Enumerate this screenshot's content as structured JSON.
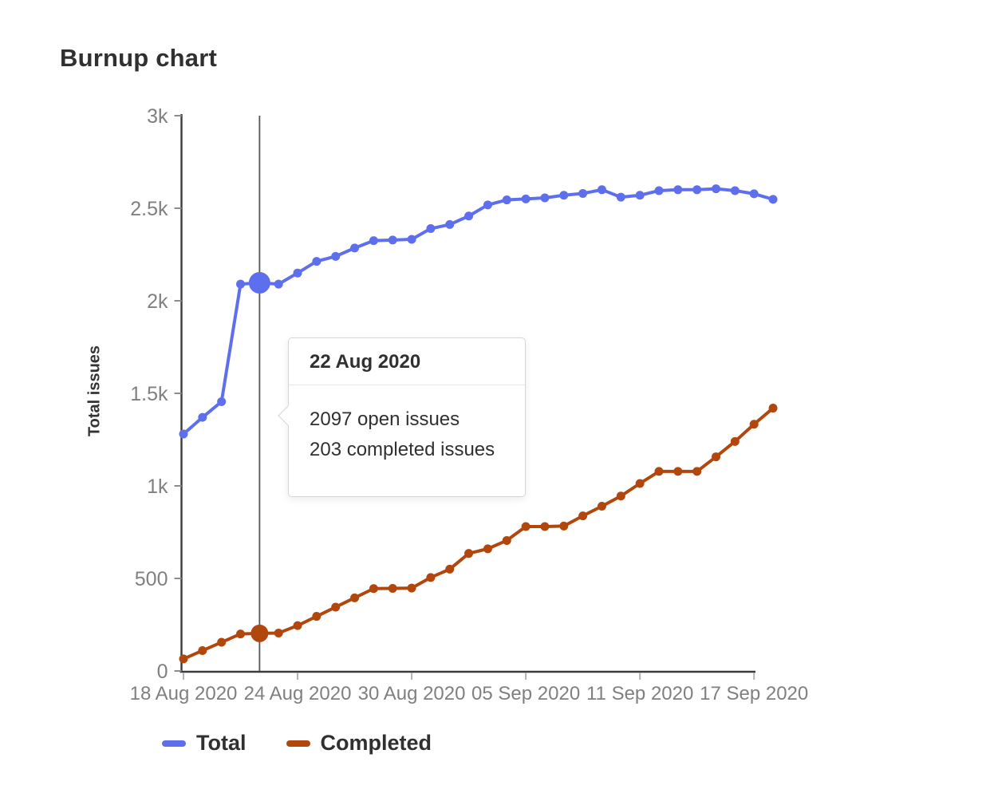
{
  "page": {
    "title": "Burnup chart"
  },
  "chart_data": {
    "type": "line",
    "title": "Burnup chart",
    "xlabel": "",
    "ylabel": "Total issues",
    "ylim": [
      0,
      3000
    ],
    "grid": false,
    "legend_position": "bottom",
    "yticks": [
      {
        "value": 0,
        "label": "0"
      },
      {
        "value": 500,
        "label": "500"
      },
      {
        "value": 1000,
        "label": "1k"
      },
      {
        "value": 1500,
        "label": "1.5k"
      },
      {
        "value": 2000,
        "label": "2k"
      },
      {
        "value": 2500,
        "label": "2.5k"
      },
      {
        "value": 3000,
        "label": "3k"
      }
    ],
    "xticks": [
      {
        "day_index": 0,
        "label": "18 Aug 2020"
      },
      {
        "day_index": 6,
        "label": "24 Aug 2020"
      },
      {
        "day_index": 12,
        "label": "30 Aug 2020"
      },
      {
        "day_index": 18,
        "label": "05 Sep 2020"
      },
      {
        "day_index": 24,
        "label": "11 Sep 2020"
      },
      {
        "day_index": 30,
        "label": "17 Sep 2020"
      }
    ],
    "x": [
      "18 Aug 2020",
      "19 Aug 2020",
      "20 Aug 2020",
      "21 Aug 2020",
      "22 Aug 2020",
      "23 Aug 2020",
      "24 Aug 2020",
      "25 Aug 2020",
      "26 Aug 2020",
      "27 Aug 2020",
      "28 Aug 2020",
      "29 Aug 2020",
      "30 Aug 2020",
      "31 Aug 2020",
      "01 Sep 2020",
      "02 Sep 2020",
      "03 Sep 2020",
      "04 Sep 2020",
      "05 Sep 2020",
      "06 Sep 2020",
      "07 Sep 2020",
      "08 Sep 2020",
      "09 Sep 2020",
      "10 Sep 2020",
      "11 Sep 2020",
      "12 Sep 2020",
      "13 Sep 2020",
      "14 Sep 2020",
      "15 Sep 2020",
      "16 Sep 2020",
      "17 Sep 2020",
      "18 Sep 2020"
    ],
    "series": [
      {
        "name": "Total",
        "color": "#5e6fed",
        "values": [
          1280,
          1370,
          1455,
          2090,
          2097,
          2090,
          2150,
          2213,
          2240,
          2285,
          2325,
          2328,
          2332,
          2390,
          2412,
          2458,
          2518,
          2545,
          2550,
          2556,
          2570,
          2580,
          2600,
          2560,
          2570,
          2595,
          2600,
          2600,
          2605,
          2595,
          2578,
          2548
        ]
      },
      {
        "name": "Completed",
        "color": "#b2470e",
        "values": [
          65,
          110,
          155,
          200,
          203,
          205,
          245,
          295,
          345,
          395,
          445,
          446,
          448,
          505,
          550,
          635,
          660,
          705,
          780,
          780,
          783,
          838,
          890,
          945,
          1013,
          1078,
          1078,
          1078,
          1157,
          1240,
          1333,
          1420
        ]
      }
    ],
    "highlight": {
      "date": "22 Aug 2020",
      "day_index": 4,
      "total_value": 2097,
      "completed_value": 203
    }
  },
  "tooltip": {
    "title": "22 Aug 2020",
    "lines": [
      "2097 open issues",
      "203 completed issues"
    ]
  },
  "legend": {
    "items": [
      {
        "label": "Total",
        "color": "#5e6fed"
      },
      {
        "label": "Completed",
        "color": "#b2470e"
      }
    ]
  },
  "colors": {
    "axis_line": "#3b3b3b",
    "tick_label": "#808080",
    "pointer_line": "#54565b",
    "text_dark": "#303030"
  }
}
